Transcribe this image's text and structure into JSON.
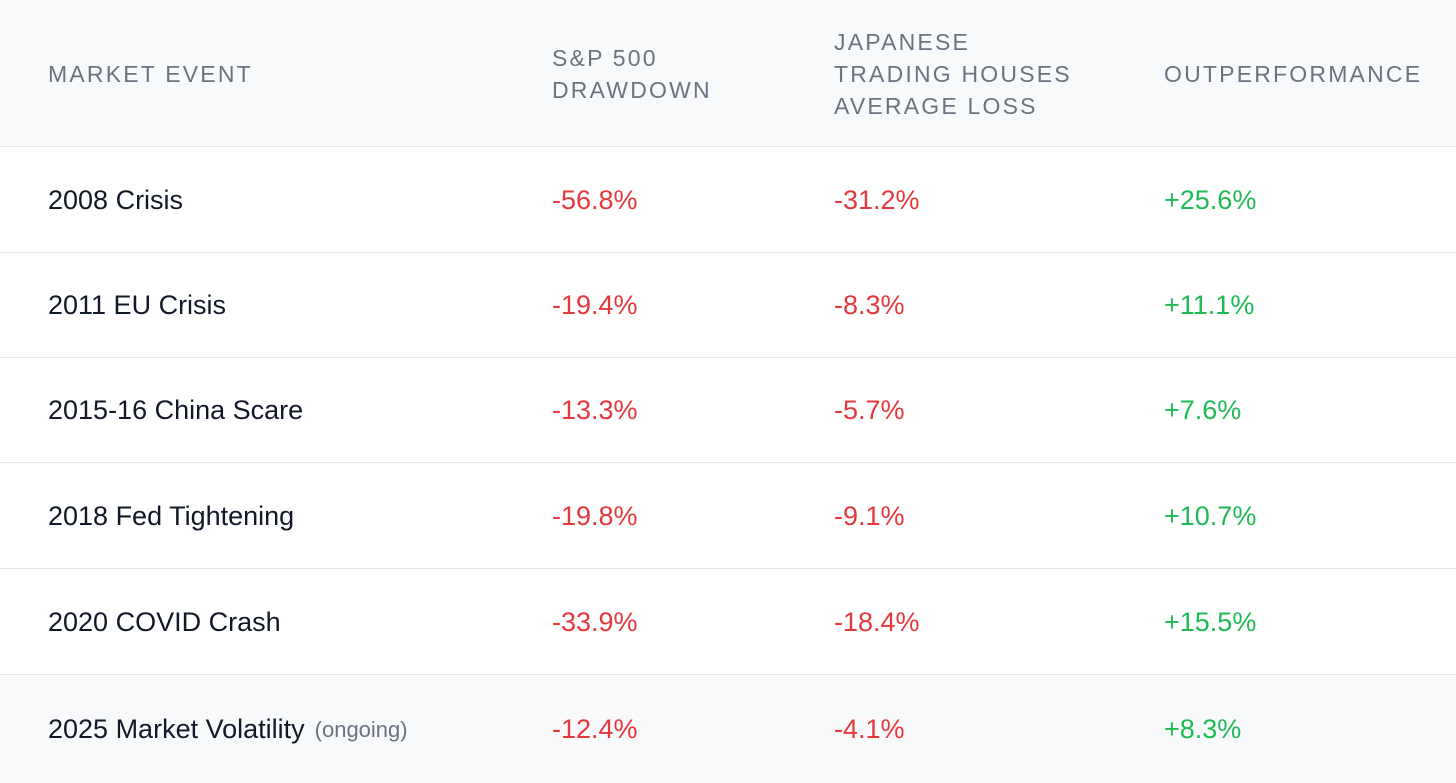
{
  "headers": {
    "event": "MARKET EVENT",
    "sp": "S&P 500 DRAWDOWN",
    "jp": "JAPANESE TRADING HOUSES AVERAGE LOSS",
    "out": "OUTPERFORMANCE"
  },
  "rows": [
    {
      "event": "2008 Crisis",
      "note": "",
      "sp": "-56.8%",
      "jp": "-31.2%",
      "out": "+25.6%"
    },
    {
      "event": "2011 EU Crisis",
      "note": "",
      "sp": "-19.4%",
      "jp": "-8.3%",
      "out": "+11.1%"
    },
    {
      "event": "2015-16 China Scare",
      "note": "",
      "sp": "-13.3%",
      "jp": "-5.7%",
      "out": "+7.6%"
    },
    {
      "event": "2018 Fed Tightening",
      "note": "",
      "sp": "-19.8%",
      "jp": "-9.1%",
      "out": "+10.7%"
    },
    {
      "event": "2020 COVID Crash",
      "note": "",
      "sp": "-33.9%",
      "jp": "-18.4%",
      "out": "+15.5%"
    },
    {
      "event": "2025 Market Volatility",
      "note": "(ongoing)",
      "sp": "-12.4%",
      "jp": "-4.1%",
      "out": "+8.3%"
    }
  ],
  "colors": {
    "negative": "#e5383b",
    "positive": "#1fba54",
    "header_bg": "#f8f9fb"
  }
}
